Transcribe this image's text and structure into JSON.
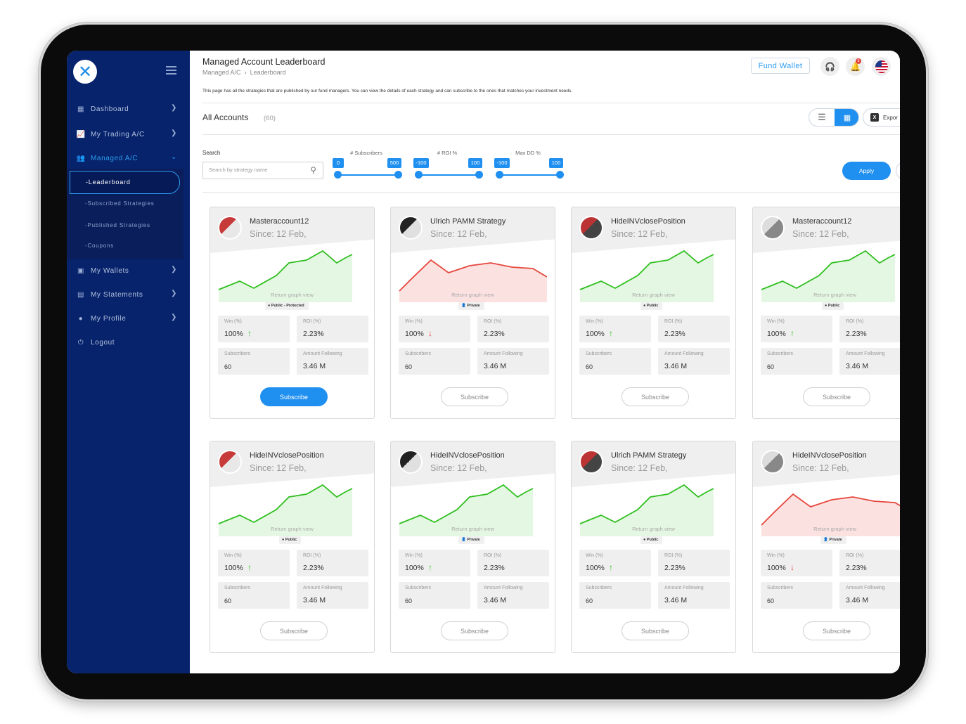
{
  "sidebar": {
    "items": [
      {
        "label": "Dashboard",
        "icon": "grid-icon"
      },
      {
        "label": "My Trading A/C",
        "icon": "chart-icon"
      },
      {
        "label": "Managed A/C",
        "icon": "users-icon"
      },
      {
        "label": "My Wallets",
        "icon": "wallet-icon"
      },
      {
        "label": "My Statements",
        "icon": "document-icon"
      },
      {
        "label": "My Profile",
        "icon": "user-icon"
      },
      {
        "label": "Logout",
        "icon": "power-icon"
      }
    ],
    "submenu": [
      "-Leaderboard",
      "-Subscribed Strategies",
      "-Published Strategies",
      "-Coupons"
    ]
  },
  "header": {
    "title": "Managed Account Leaderboard",
    "breadcrumb": [
      "Managed A/C",
      "Leaderboard"
    ],
    "fund_wallet": "Fund Wallet",
    "notification_count": "5"
  },
  "description": "This page has all the strategies that are published by our fund managers. You can view the details of each strategy and can subscribe to the ones that matches your investment needs.",
  "toolbar": {
    "title": "All Accounts",
    "count": "(60)",
    "export": "Expor"
  },
  "filters": {
    "search_label": "Search",
    "search_placeholder": "Search by strategy name",
    "subscribers": {
      "label": "# Subscribers",
      "min": "0",
      "max": "500"
    },
    "roi": {
      "label": "# ROI %",
      "min": "-100",
      "max": "100"
    },
    "max_dd": {
      "label": "Max DD %",
      "min": "-100",
      "max": "100"
    },
    "apply": "Apply"
  },
  "colors": {
    "up": "#2fbf1f",
    "down": "#e5463c",
    "accent": "#1f8ff0",
    "sidebar": "#06236b"
  },
  "card_labels": {
    "graph": "Return graph view",
    "win": "Win (%)",
    "roi": "ROI (%)",
    "subscribers": "Subscribers",
    "amount": "Amount Following",
    "subscribe": "Subscribe"
  },
  "cards": [
    {
      "name": "Masteraccount12",
      "since": "Since: 12 Feb,",
      "visibility": "Public - Protected",
      "win": "100%",
      "roi": "2.23%",
      "subscribers": "60",
      "amount": "3.46 M",
      "trend": "up",
      "primary": true
    },
    {
      "name": "Ulrich PAMM Strategy",
      "since": "Since: 12 Feb,",
      "visibility": "Private",
      "win": "100%",
      "roi": "2.23%",
      "subscribers": "60",
      "amount": "3.46 M",
      "trend": "down",
      "primary": false
    },
    {
      "name": "HideINVclosePosition",
      "since": "Since: 12 Feb,",
      "visibility": "Public",
      "win": "100%",
      "roi": "2.23%",
      "subscribers": "60",
      "amount": "3.46 M",
      "trend": "up",
      "primary": false
    },
    {
      "name": "Masteraccount12",
      "since": "Since: 12 Feb,",
      "visibility": "Public",
      "win": "100%",
      "roi": "2.23%",
      "subscribers": "60",
      "amount": "3.46 M",
      "trend": "up",
      "primary": false
    },
    {
      "name": "HideINVclosePosition",
      "since": "Since: 12 Feb,",
      "visibility": "Public",
      "win": "100%",
      "roi": "2.23%",
      "subscribers": "60",
      "amount": "3.46 M",
      "trend": "up",
      "primary": false
    },
    {
      "name": "HideINVclosePosition",
      "since": "Since: 12 Feb,",
      "visibility": "Private",
      "win": "100%",
      "roi": "2.23%",
      "subscribers": "60",
      "amount": "3.46 M",
      "trend": "up",
      "primary": false
    },
    {
      "name": "Ulrich PAMM Strategy",
      "since": "Since: 12 Feb,",
      "visibility": "Public",
      "win": "100%",
      "roi": "2.23%",
      "subscribers": "60",
      "amount": "3.46 M",
      "trend": "up",
      "primary": false
    },
    {
      "name": "HideINVclosePosition",
      "since": "Since: 12 Feb,",
      "visibility": "Private",
      "win": "100%",
      "roi": "2.23%",
      "subscribers": "60",
      "amount": "3.46 M",
      "trend": "down",
      "primary": false
    }
  ]
}
